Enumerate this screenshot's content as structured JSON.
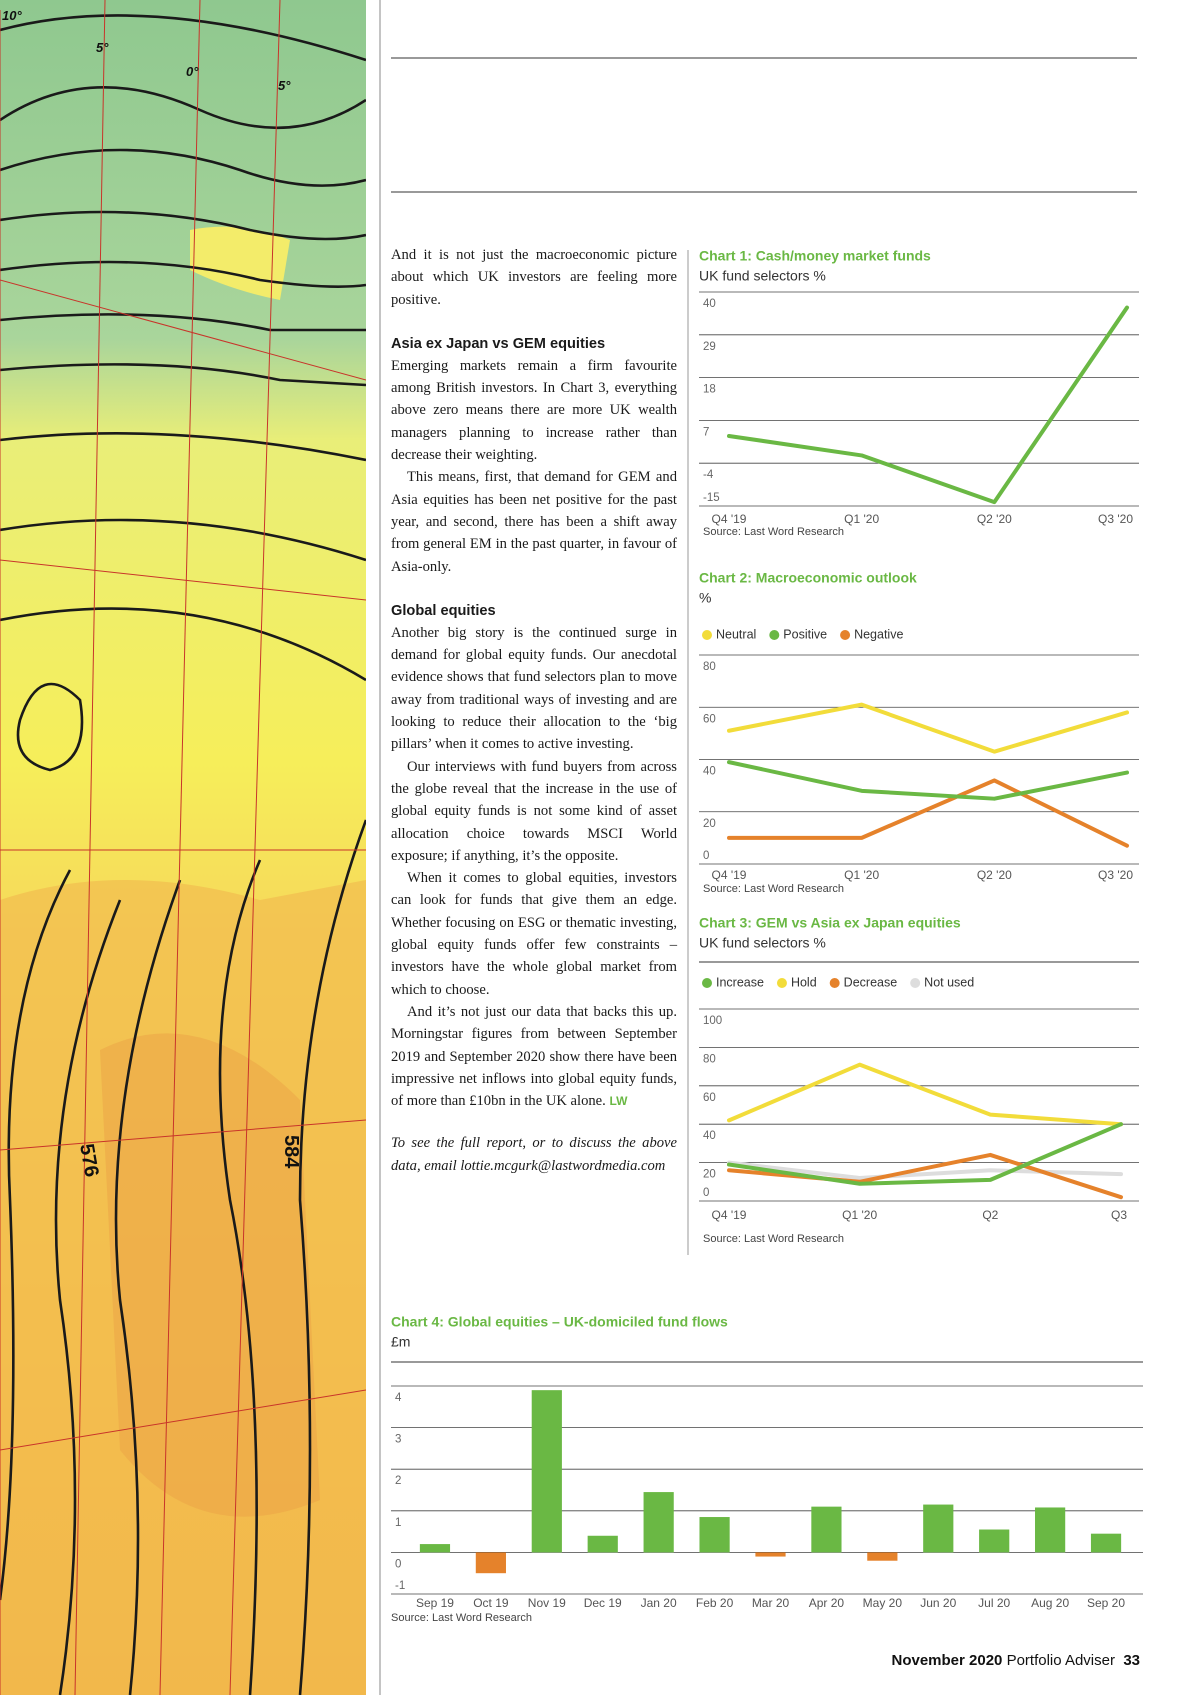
{
  "map": {
    "labels": [
      "10°",
      "5°",
      "0°",
      "5°",
      "576",
      "584"
    ]
  },
  "article": {
    "intro": "And it is not just the macroeconomic picture about which UK investors are feeling more positive.",
    "sections": [
      {
        "heading": "Asia ex Japan vs GEM equities",
        "paragraphs": [
          "Emerging markets remain a firm favourite among British investors. In Chart 3, everything above zero means there are more UK wealth managers planning to increase rather than decrease their weighting.",
          "This means, first, that demand for GEM and Asia equities has been net positive for the past year, and second, there has been a shift away from general EM in the past quarter, in favour of Asia-only."
        ]
      },
      {
        "heading": "Global equities",
        "paragraphs": [
          "Another big story is the continued surge in demand for global equity funds. Our anecdotal evidence shows that fund selectors plan to move away from traditional ways of investing and are looking to reduce their allocation to the ‘big pillars’ when it comes to active investing.",
          "Our interviews with fund buyers from across the globe reveal that the increase in the use of global equity funds is not some kind of asset allocation choice towards MSCI World exposure; if anything, it’s the opposite.",
          "When it comes to global equities, investors can look for funds that give them an edge. Whether focusing on ESG or thematic investing, global equity funds offer few constraints – investors have the whole global market from which to choose.",
          "And it’s not just our data that backs this up. Morningstar figures from between September 2019 and September 2020 show there have been impressive net inflows into global equity funds, of more than £10bn in the UK alone."
        ]
      }
    ],
    "signoff": "LW",
    "footnote": "To see the full report, or to discuss the above data, email lottie.mcgurk@lastwordmedia.com"
  },
  "chart_data": [
    {
      "type": "line",
      "title": "Chart 1: Cash/money market funds",
      "subtitle": "UK fund selectors %",
      "categories": [
        "Q4 '19",
        "Q1 '20",
        "Q2 '20",
        "Q3 '20"
      ],
      "values": [
        3,
        -2,
        -14,
        36
      ],
      "color": "#6ab844",
      "ylim": [
        -15,
        40
      ],
      "yticks": [
        40,
        29,
        18,
        7,
        -4,
        -15
      ],
      "grid": true,
      "source": "Source: Last Word Research"
    },
    {
      "type": "line",
      "title": "Chart 2: Macroeconomic outlook",
      "subtitle": "%",
      "categories": [
        "Q4 '19",
        "Q1 '20",
        "Q2 '20",
        "Q3 '20"
      ],
      "series": [
        {
          "name": "Neutral",
          "color": "#f2dc3a",
          "values": [
            51,
            61,
            43,
            58
          ]
        },
        {
          "name": "Positive",
          "color": "#6ab844",
          "values": [
            39,
            28,
            25,
            35
          ]
        },
        {
          "name": "Negative",
          "color": "#e5822b",
          "values": [
            10,
            10,
            32,
            7
          ]
        }
      ],
      "ylim": [
        0,
        80
      ],
      "yticks": [
        80,
        60,
        40,
        20,
        0
      ],
      "grid": true,
      "legend": "top-left",
      "source": "Source: Last Word Research"
    },
    {
      "type": "line",
      "title": "Chart 3: GEM vs Asia ex Japan equities",
      "subtitle": "UK fund selectors %",
      "categories": [
        "Q4 '19",
        "Q1 '20",
        "Q2",
        "Q3"
      ],
      "series": [
        {
          "name": "Increase",
          "color": "#6ab844",
          "values": [
            19,
            9,
            11,
            40
          ]
        },
        {
          "name": "Hold",
          "color": "#f2dc3a",
          "values": [
            42,
            71,
            45,
            40
          ]
        },
        {
          "name": "Decrease",
          "color": "#e5822b",
          "values": [
            16,
            10,
            24,
            2
          ]
        },
        {
          "name": "Not used",
          "color": "#dddddd",
          "values": [
            20,
            12,
            16,
            14
          ]
        }
      ],
      "ylim": [
        0,
        100
      ],
      "yticks": [
        100,
        80,
        60,
        40,
        20,
        0
      ],
      "grid": true,
      "legend": "top-left",
      "source": "Source: Last Word Research"
    },
    {
      "type": "bar",
      "title": "Chart 4: Global equities – UK-domiciled fund flows",
      "subtitle": "£m",
      "categories": [
        "Sep 19",
        "Oct 19",
        "Nov 19",
        "Dec 19",
        "Jan 20",
        "Feb 20",
        "Mar 20",
        "Apr 20",
        "May 20",
        "Jun 20",
        "Jul 20",
        "Aug 20",
        "Sep 20"
      ],
      "values": [
        0.2,
        -0.5,
        3.9,
        0.4,
        1.45,
        0.85,
        -0.1,
        1.1,
        -0.2,
        1.15,
        0.55,
        1.08,
        0.45
      ],
      "color": "#6ab844",
      "negative_color": "#e5822b",
      "ylim": [
        -1,
        4
      ],
      "yticks": [
        4,
        3,
        2,
        1,
        0,
        -1
      ],
      "grid": true,
      "source": "Source: Last Word Research"
    }
  ],
  "footer": {
    "date": "November 2020",
    "publication": "Portfolio Adviser",
    "page": "33"
  }
}
